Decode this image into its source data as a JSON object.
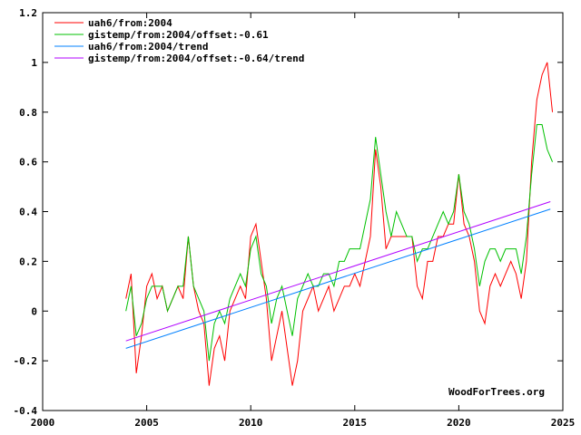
{
  "chart_data": {
    "type": "line",
    "title": "",
    "xlabel": "",
    "ylabel": "",
    "xlim": [
      2000,
      2025
    ],
    "ylim": [
      -0.4,
      1.2
    ],
    "xticks": [
      2000,
      2005,
      2010,
      2015,
      2020,
      2025
    ],
    "yticks": [
      -0.4,
      -0.2,
      0,
      0.2,
      0.4,
      0.6,
      0.8,
      1,
      1.2
    ],
    "ytick_labels": [
      "-0.4",
      "-0.2",
      "0",
      "0.2",
      "0.4",
      "0.6",
      "0.8",
      "1",
      "1.2"
    ],
    "grid": false,
    "legend_position": "top-left",
    "watermark": "WoodForTrees.org",
    "series": [
      {
        "name": "uah6/from:2004",
        "color": "#ff0000",
        "x_start": 2004,
        "x_step": 0.25,
        "values": [
          0.05,
          0.15,
          -0.25,
          -0.1,
          0.1,
          0.15,
          0.05,
          0.1,
          0.0,
          0.05,
          0.1,
          0.05,
          0.3,
          0.1,
          0.0,
          -0.05,
          -0.3,
          -0.15,
          -0.1,
          -0.2,
          0.0,
          0.05,
          0.1,
          0.05,
          0.3,
          0.35,
          0.2,
          0.05,
          -0.2,
          -0.1,
          0.0,
          -0.15,
          -0.3,
          -0.2,
          0.0,
          0.05,
          0.1,
          0.0,
          0.05,
          0.1,
          0.0,
          0.05,
          0.1,
          0.1,
          0.15,
          0.1,
          0.2,
          0.3,
          0.65,
          0.5,
          0.25,
          0.3,
          0.3,
          0.3,
          0.3,
          0.3,
          0.1,
          0.05,
          0.2,
          0.2,
          0.3,
          0.3,
          0.35,
          0.35,
          0.55,
          0.35,
          0.3,
          0.2,
          0.0,
          -0.05,
          0.1,
          0.15,
          0.1,
          0.15,
          0.2,
          0.15,
          0.05,
          0.2,
          0.6,
          0.85,
          0.95,
          1.0,
          0.8
        ]
      },
      {
        "name": "gistemp/from:2004/offset:-0.61",
        "color": "#00c000",
        "x_start": 2004,
        "x_step": 0.25,
        "values": [
          0.0,
          0.1,
          -0.1,
          -0.05,
          0.05,
          0.1,
          0.1,
          0.1,
          0.0,
          0.05,
          0.1,
          0.1,
          0.3,
          0.1,
          0.05,
          0.0,
          -0.2,
          -0.05,
          0.0,
          -0.05,
          0.05,
          0.1,
          0.15,
          0.1,
          0.25,
          0.3,
          0.15,
          0.1,
          -0.05,
          0.05,
          0.1,
          0.0,
          -0.1,
          0.05,
          0.1,
          0.15,
          0.1,
          0.1,
          0.15,
          0.15,
          0.1,
          0.2,
          0.2,
          0.25,
          0.25,
          0.25,
          0.35,
          0.45,
          0.7,
          0.55,
          0.4,
          0.3,
          0.4,
          0.35,
          0.3,
          0.3,
          0.2,
          0.25,
          0.25,
          0.3,
          0.35,
          0.4,
          0.35,
          0.4,
          0.55,
          0.4,
          0.35,
          0.25,
          0.1,
          0.2,
          0.25,
          0.25,
          0.2,
          0.25,
          0.25,
          0.25,
          0.15,
          0.3,
          0.55,
          0.75,
          0.75,
          0.65,
          0.6
        ]
      },
      {
        "name": "uah6/from:2004/trend",
        "color": "#0080ff",
        "x": [
          2004,
          2024.4
        ],
        "values": [
          -0.15,
          0.41
        ]
      },
      {
        "name": "gistemp/from:2004/offset:-0.64/trend",
        "color": "#b000ff",
        "x": [
          2004,
          2024.4
        ],
        "values": [
          -0.12,
          0.44
        ]
      }
    ]
  }
}
